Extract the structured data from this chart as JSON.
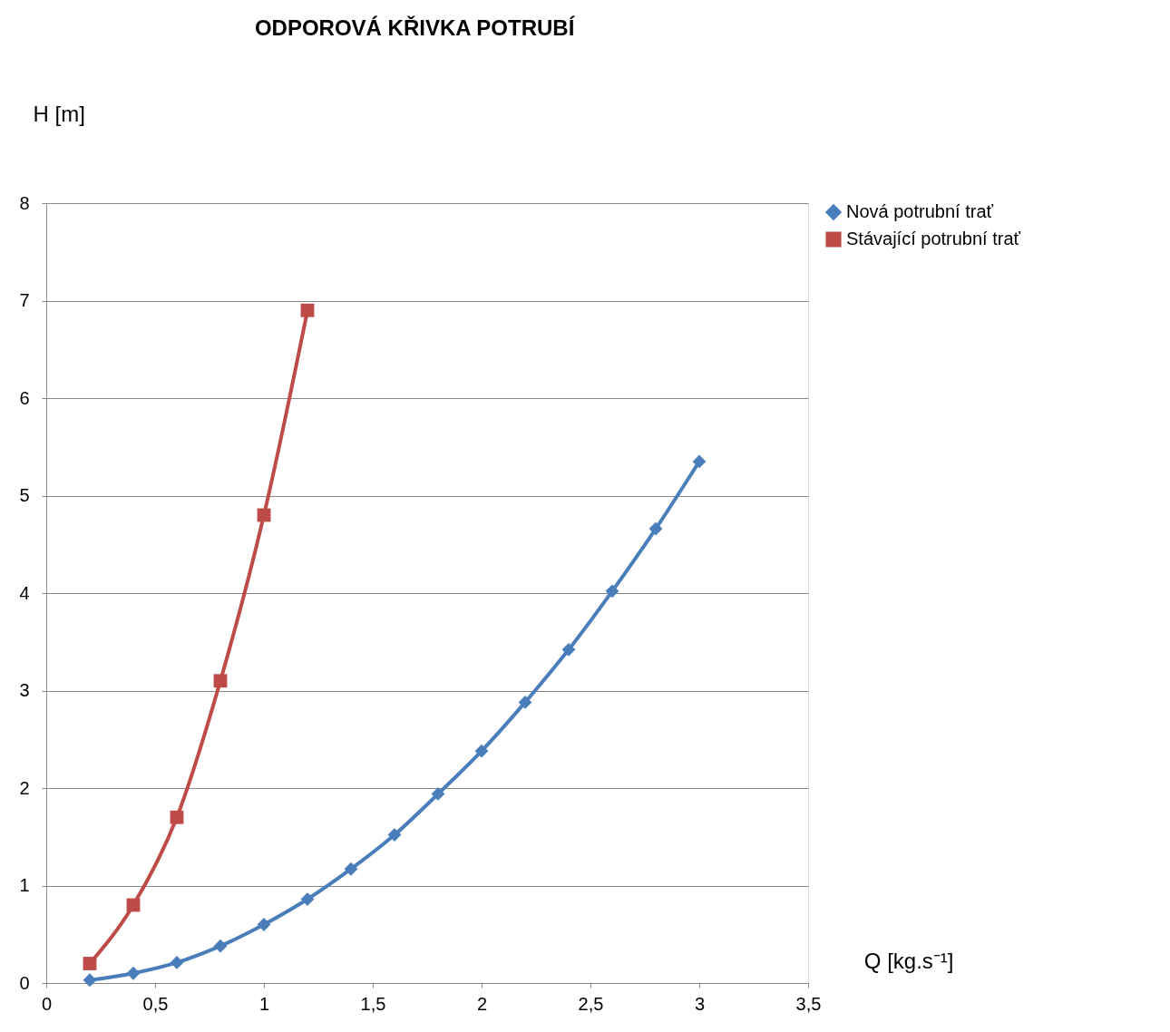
{
  "chart_data": {
    "type": "line",
    "title": "ODPOROVÁ KŘIVKA POTRUBÍ",
    "xlabel": "Q [kg.s⁻¹]",
    "ylabel": "H [m]",
    "xlim": [
      0,
      3.5
    ],
    "xticks": [
      0,
      {
        "value": 0.5,
        "label": "0,5"
      },
      1,
      {
        "value": 1.5,
        "label": "1,5"
      },
      2,
      {
        "value": 2.5,
        "label": "2,5"
      },
      3,
      {
        "value": 3.5,
        "label": "3,5"
      }
    ],
    "ylim": [
      0,
      8
    ],
    "yticks": [
      0,
      1,
      2,
      3,
      4,
      5,
      6,
      7,
      8
    ],
    "grid": "y",
    "legend": "right",
    "line_style": "solid",
    "series": [
      {
        "name": "Nová potrubní trať",
        "color": "#4a7ebb",
        "marker": "diamond",
        "x": [
          0.2,
          0.4,
          0.6,
          0.8,
          1.0,
          1.2,
          1.4,
          1.6,
          1.8,
          2.0,
          2.2,
          2.4,
          2.6,
          2.8,
          3.0
        ],
        "values": [
          0.03,
          0.1,
          0.21,
          0.38,
          0.6,
          0.86,
          1.17,
          1.52,
          1.94,
          2.38,
          2.88,
          3.42,
          4.02,
          4.66,
          5.35
        ]
      },
      {
        "name": "Stávající potrubní trať",
        "color": "#be4b48",
        "marker": "square",
        "x": [
          0.2,
          0.4,
          0.6,
          0.8,
          1.0,
          1.2
        ],
        "values": [
          0.2,
          0.8,
          1.7,
          3.1,
          4.8,
          6.9
        ]
      }
    ]
  }
}
